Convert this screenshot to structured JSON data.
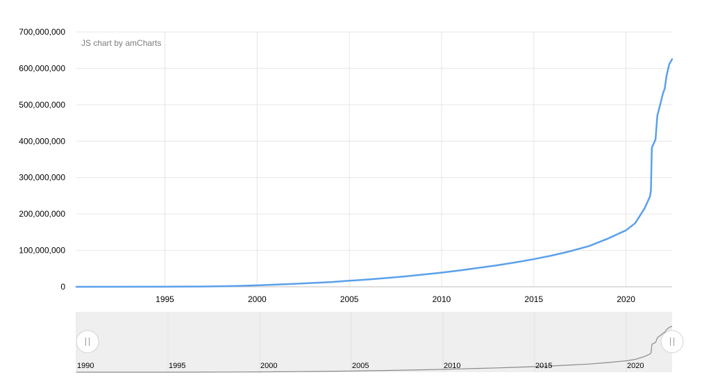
{
  "credit": "JS chart by amCharts",
  "colors": {
    "series": "#5aa0ea",
    "grid": "#e6e6e6",
    "axis": "#bdbdbd",
    "navigator_bg": "#efefef",
    "navigator_line": "#8a8a8a",
    "handle_border": "#cfcfcf"
  },
  "chart_data": {
    "type": "line",
    "title": "",
    "xlabel": "",
    "ylabel": "",
    "xlim": [
      1990.2,
      2022.5
    ],
    "ylim": [
      0,
      700000000
    ],
    "grid": true,
    "legend": "none",
    "y_ticks": [
      {
        "value": 0,
        "label": "0"
      },
      {
        "value": 100000000,
        "label": "100,000,000"
      },
      {
        "value": 200000000,
        "label": "200,000,000"
      },
      {
        "value": 300000000,
        "label": "300,000,000"
      },
      {
        "value": 400000000,
        "label": "400,000,000"
      },
      {
        "value": 500000000,
        "label": "500,000,000"
      },
      {
        "value": 600000000,
        "label": "600,000,000"
      },
      {
        "value": 700000000,
        "label": "700,000,000"
      }
    ],
    "x_ticks": [
      {
        "value": 1995,
        "label": "1995"
      },
      {
        "value": 2000,
        "label": "2000"
      },
      {
        "value": 2005,
        "label": "2005"
      },
      {
        "value": 2010,
        "label": "2010"
      },
      {
        "value": 2015,
        "label": "2015"
      },
      {
        "value": 2020,
        "label": "2020"
      }
    ],
    "series": [
      {
        "x": [
          1990.2,
          1995,
          1997,
          1998,
          1999,
          2000,
          2001,
          2002,
          2003,
          2004,
          2005,
          2006,
          2007,
          2008,
          2009,
          2010,
          2011,
          2012,
          2013,
          2014,
          2015,
          2016,
          2017,
          2018,
          2019,
          2020,
          2020.5,
          2021,
          2021.3,
          2021.35,
          2021.4,
          2021.6,
          2021.7,
          2021.8,
          2021.9,
          2022,
          2022.1,
          2022.2,
          2022.35,
          2022.5
        ],
        "y": [
          0,
          200000,
          800000,
          1500000,
          2500000,
          4000000,
          6000000,
          8000000,
          10500000,
          13000000,
          16500000,
          20000000,
          24000000,
          28500000,
          33500000,
          39000000,
          45000000,
          52000000,
          59000000,
          67000000,
          76000000,
          86000000,
          98000000,
          112000000,
          132000000,
          155000000,
          175000000,
          215000000,
          248000000,
          265000000,
          382000000,
          405000000,
          470000000,
          490000000,
          510000000,
          530000000,
          545000000,
          580000000,
          612000000,
          625000000
        ]
      }
    ]
  },
  "navigator": {
    "labels": [
      {
        "value": 1990,
        "label": "1990"
      },
      {
        "value": 1995,
        "label": "1995"
      },
      {
        "value": 2000,
        "label": "2000"
      },
      {
        "value": 2005,
        "label": "2005"
      },
      {
        "value": 2010,
        "label": "2010"
      },
      {
        "value": 2015,
        "label": "2015"
      },
      {
        "value": 2020,
        "label": "2020"
      }
    ],
    "handle_left_icon": "grip-icon",
    "handle_right_icon": "grip-icon"
  }
}
